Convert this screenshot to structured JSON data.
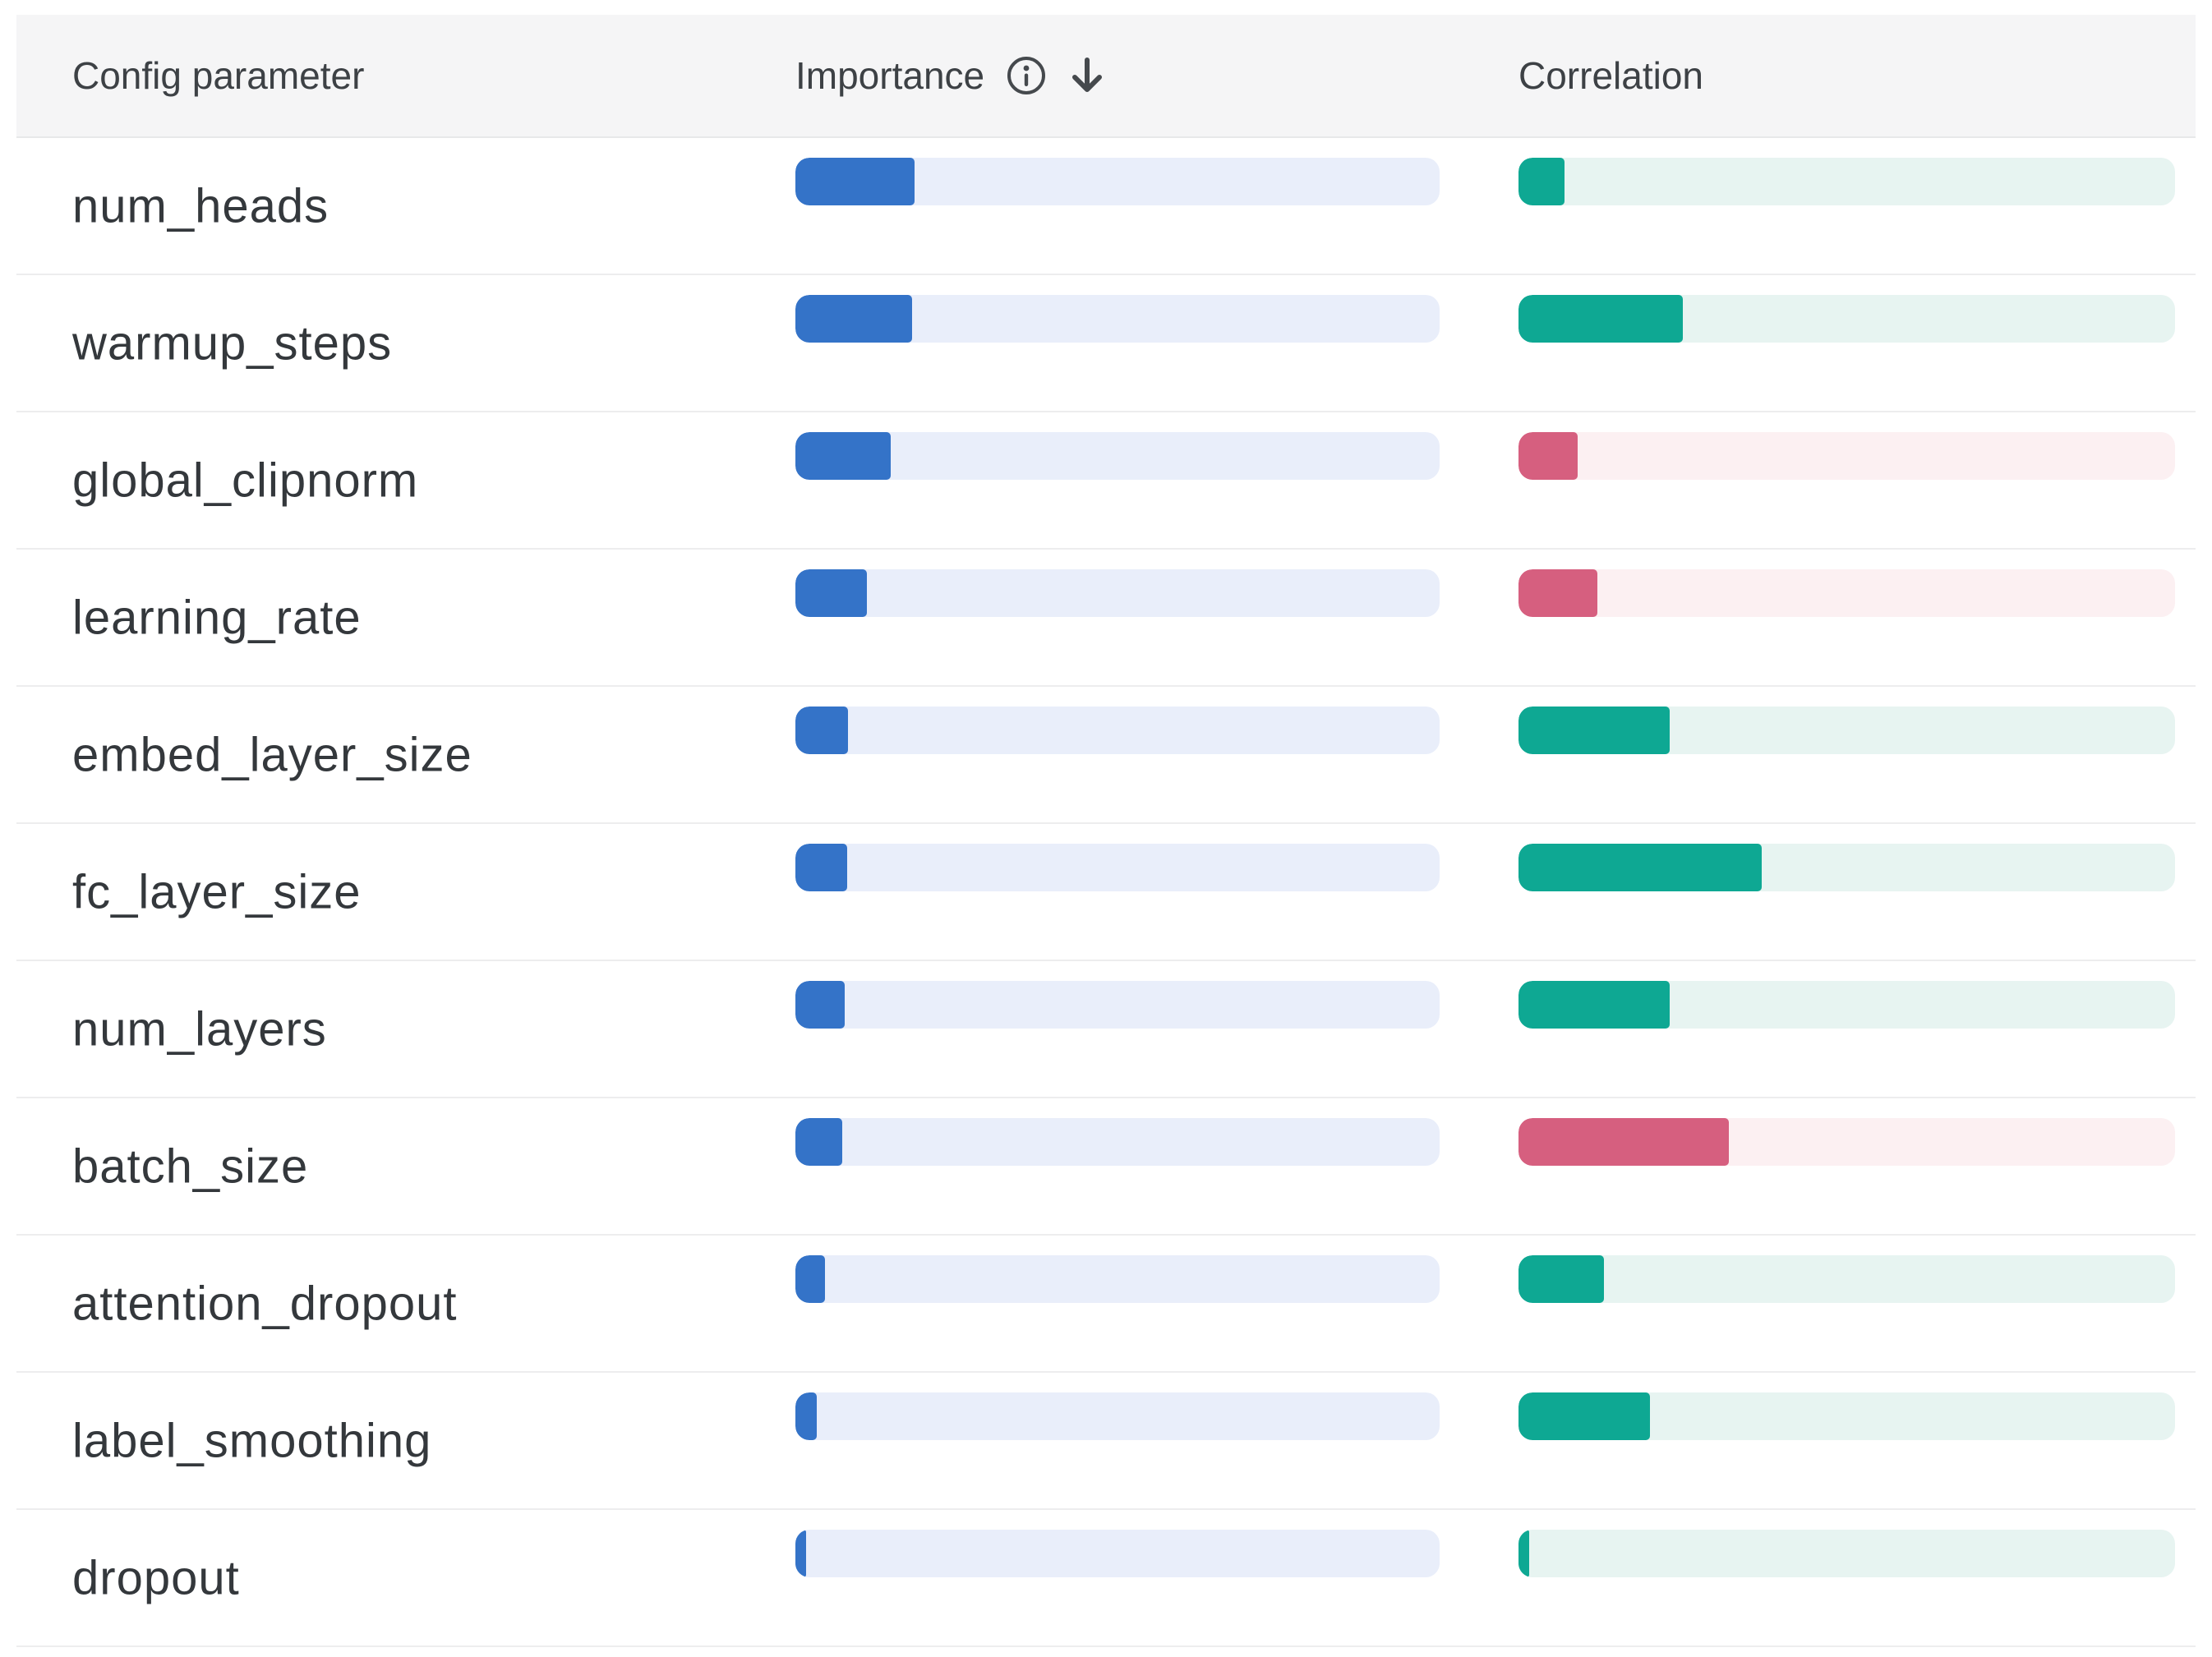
{
  "table": {
    "columns": {
      "parameter": "Config parameter",
      "importance": "Importance",
      "correlation": "Correlation"
    },
    "header_icons": {
      "info": "info-icon",
      "sort": "sort-descending-arrow-icon"
    },
    "rows": [
      {
        "parameter": "num_heads",
        "importance": 0.185,
        "correlation": 0.07
      },
      {
        "parameter": "warmup_steps",
        "importance": 0.181,
        "correlation": 0.25
      },
      {
        "parameter": "global_clipnorm",
        "importance": 0.148,
        "correlation": -0.09
      },
      {
        "parameter": "learning_rate",
        "importance": 0.111,
        "correlation": -0.12
      },
      {
        "parameter": "embed_layer_size",
        "importance": 0.082,
        "correlation": 0.23
      },
      {
        "parameter": "fc_layer_size",
        "importance": 0.08,
        "correlation": 0.37
      },
      {
        "parameter": "num_layers",
        "importance": 0.077,
        "correlation": 0.23
      },
      {
        "parameter": "batch_size",
        "importance": 0.073,
        "correlation": -0.32
      },
      {
        "parameter": "attention_dropout",
        "importance": 0.046,
        "correlation": 0.13
      },
      {
        "parameter": "label_smoothing",
        "importance": 0.033,
        "correlation": 0.2
      },
      {
        "parameter": "dropout",
        "importance": 0.017,
        "correlation": 0.016
      }
    ]
  },
  "chart_data": {
    "type": "bar",
    "categories": [
      "num_heads",
      "warmup_steps",
      "global_clipnorm",
      "learning_rate",
      "embed_layer_size",
      "fc_layer_size",
      "num_layers",
      "batch_size",
      "attention_dropout",
      "label_smoothing",
      "dropout"
    ],
    "series": [
      {
        "name": "Importance",
        "values": [
          0.185,
          0.181,
          0.148,
          0.111,
          0.082,
          0.08,
          0.077,
          0.073,
          0.046,
          0.033,
          0.017
        ]
      },
      {
        "name": "Correlation",
        "values": [
          0.07,
          0.25,
          -0.09,
          -0.12,
          0.23,
          0.37,
          0.23,
          -0.32,
          0.13,
          0.2,
          0.016
        ]
      }
    ],
    "title": "",
    "xlabel": "",
    "ylabel": "",
    "ylim": [
      0,
      1
    ],
    "legend_position": "none",
    "grid": false
  },
  "colors": {
    "importance_fill": "#3473c8",
    "importance_track": "#e9eefa",
    "positive_fill": "#0ea893",
    "positive_track": "#e7f4f1",
    "negative_fill": "#d65f7f",
    "negative_track": "#fcf0f2",
    "header_bg": "#f5f5f6",
    "divider": "#ededee",
    "header_text": "#3d4145",
    "label_text": "#34383c",
    "icon": "#45494d"
  }
}
